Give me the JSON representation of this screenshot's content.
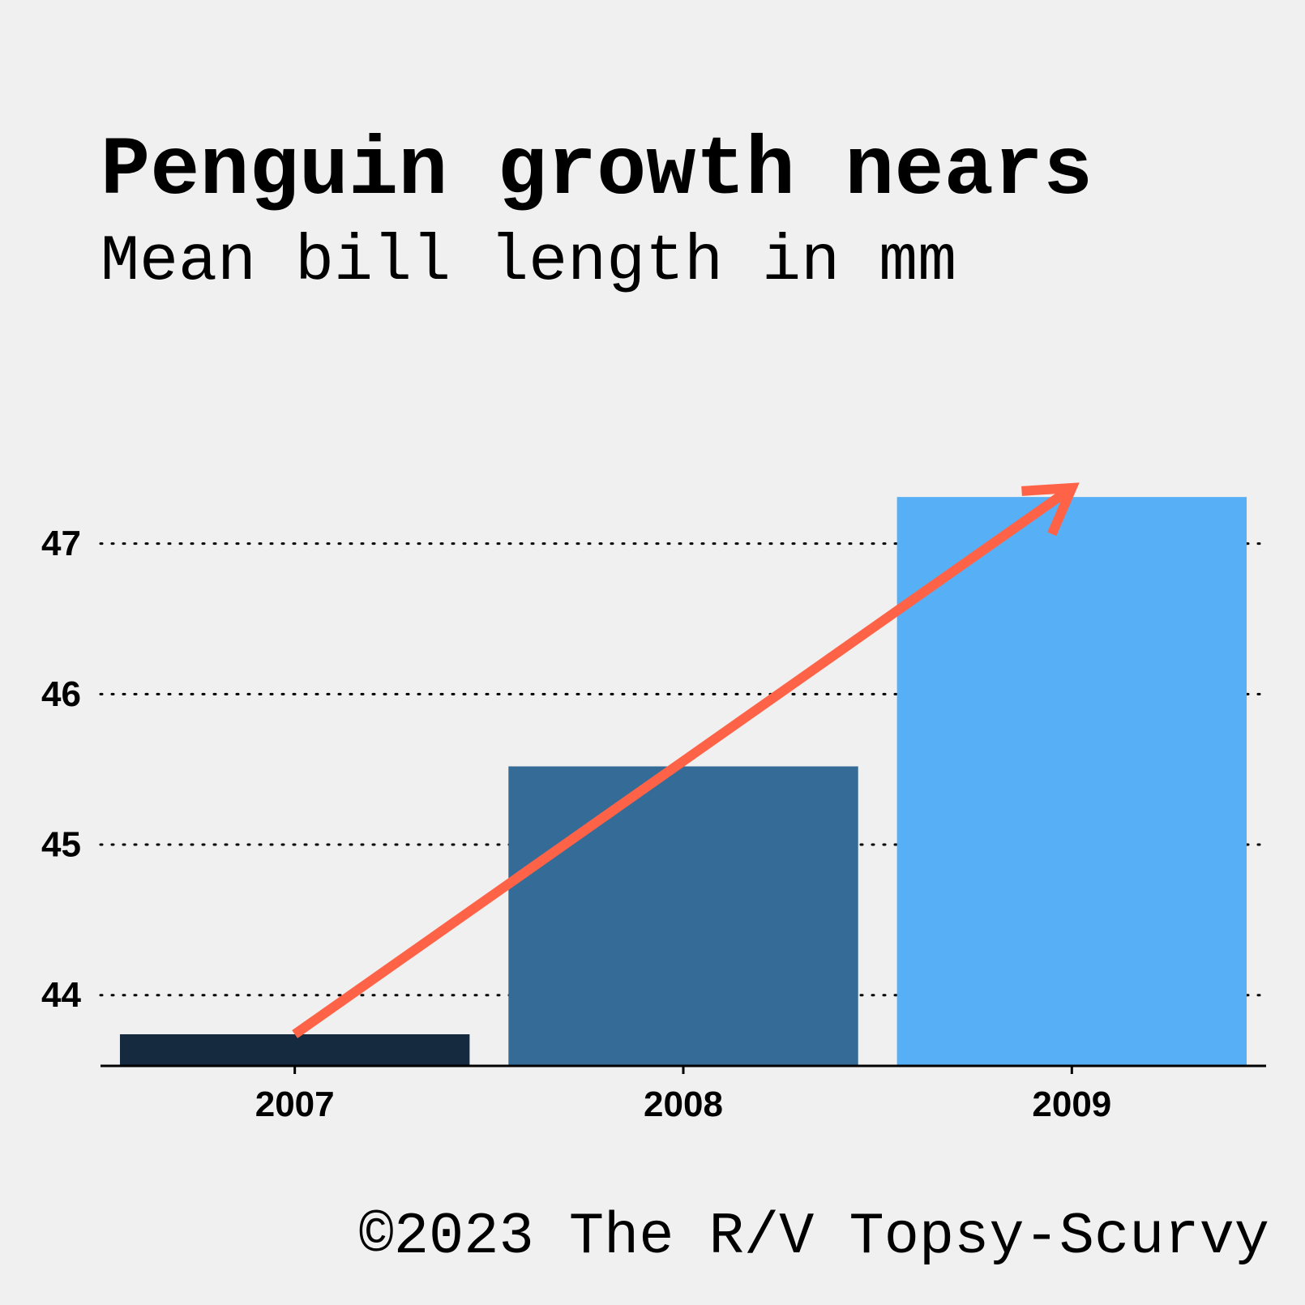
{
  "chart_data": {
    "type": "bar",
    "title": "Penguin growth nears",
    "subtitle": "Mean bill length in mm",
    "caption": "©2023 The R/V Topsy-Scurvy",
    "xlabel": "",
    "ylabel": "",
    "categories": [
      "2007",
      "2008",
      "2009"
    ],
    "values": [
      43.74,
      45.52,
      47.31
    ],
    "bar_colors": [
      "#15293f",
      "#356b97",
      "#57b0f5"
    ],
    "ylim": [
      43.53,
      48.0
    ],
    "yticks": [
      44,
      45,
      46,
      47
    ],
    "grid": "horizontal dotted",
    "legend": "none",
    "annotation": {
      "type": "arrow",
      "from_category": "2007",
      "from_value": 43.74,
      "to_category": "2009",
      "to_value": 47.37,
      "color": "#ff6347"
    }
  },
  "colors": {
    "background": "#f0f0f0",
    "text": "#000000",
    "grid": "#000000",
    "arrow": "#ff6347"
  }
}
